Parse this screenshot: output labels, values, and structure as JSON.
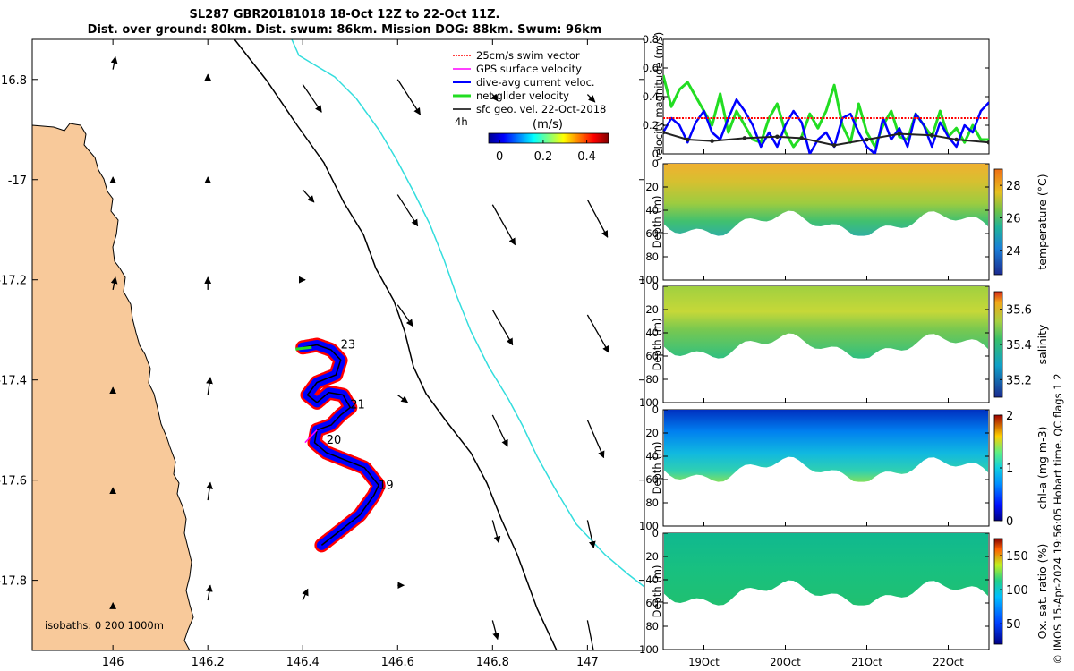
{
  "title": {
    "line1": "SL287 GBR20181018 18-Oct 12Z to 22-Oct 11Z.",
    "line2": "Dist. over ground: 80km. Dist. swum: 86km. Mission DOG: 88km. Swum: 96km"
  },
  "colors": {
    "land": "#f8c99a",
    "isobath_200": "#000000",
    "isobath_1000": "#33dddd",
    "track": "#000000",
    "dive_current": "#0000ff",
    "swim": "#ff0000",
    "gps": "#ff00ff",
    "net": "#22dd22"
  },
  "map": {
    "xticks": [
      "146",
      "146.2",
      "146.4",
      "146.6",
      "146.8",
      "147"
    ],
    "xtick_values": [
      146,
      146.2,
      146.4,
      146.6,
      146.8,
      147
    ],
    "yticks": [
      "-16.8",
      "-17",
      "-17.2",
      "-17.4",
      "-17.6",
      "-17.8"
    ],
    "ytick_values": [
      -16.8,
      -17,
      -17.2,
      -17.4,
      -17.6,
      -17.8
    ],
    "xlim": [
      145.83,
      147.12
    ],
    "ylim": [
      -17.94,
      -16.72
    ],
    "legend": [
      {
        "label": "25cm/s swim vector"
      },
      {
        "label": "GPS surface velocity"
      },
      {
        "label": "dive-avg current veloc."
      },
      {
        "label": "net glider velocity"
      },
      {
        "label": "sfc geo. vel. 22-Oct-2018"
      }
    ],
    "legend_period": "4h",
    "colorbar_units": "(m/s)",
    "colorbar_ticks": [
      "0",
      "0.2",
      "0.4"
    ],
    "colorbar_tick_values": [
      0,
      0.2,
      0.4
    ],
    "colorbar_range": [
      -0.05,
      0.5
    ],
    "isobaths_text": "isobaths: 0   200  1000m",
    "day_labels": [
      {
        "text": "23",
        "lon": 146.48,
        "lat": -17.33
      },
      {
        "text": "21",
        "lon": 146.5,
        "lat": -17.45
      },
      {
        "text": "20",
        "lon": 146.45,
        "lat": -17.52
      },
      {
        "text": "19",
        "lon": 146.56,
        "lat": -17.61
      }
    ],
    "glider_track": [
      [
        146.44,
        -17.73
      ],
      [
        146.48,
        -17.7
      ],
      [
        146.52,
        -17.67
      ],
      [
        146.55,
        -17.63
      ],
      [
        146.56,
        -17.61
      ],
      [
        146.53,
        -17.575
      ],
      [
        146.49,
        -17.56
      ],
      [
        146.45,
        -17.545
      ],
      [
        146.425,
        -17.525
      ],
      [
        146.43,
        -17.5
      ],
      [
        146.46,
        -17.49
      ],
      [
        146.48,
        -17.47
      ],
      [
        146.5,
        -17.455
      ],
      [
        146.485,
        -17.43
      ],
      [
        146.455,
        -17.425
      ],
      [
        146.43,
        -17.445
      ],
      [
        146.41,
        -17.43
      ],
      [
        146.43,
        -17.405
      ],
      [
        146.47,
        -17.39
      ],
      [
        146.48,
        -17.36
      ],
      [
        146.46,
        -17.34
      ],
      [
        146.43,
        -17.33
      ],
      [
        146.4,
        -17.335
      ]
    ],
    "current_vectors": [
      {
        "lon": 146.0,
        "lat": -16.78,
        "u": 0.02,
        "v": 0.1
      },
      {
        "lon": 146.2,
        "lat": -16.8,
        "u": 0.0,
        "v": 0.04
      },
      {
        "lon": 146.4,
        "lat": -16.81,
        "u": 0.15,
        "v": -0.22
      },
      {
        "lon": 146.6,
        "lat": -16.8,
        "u": 0.18,
        "v": -0.28
      },
      {
        "lon": 146.8,
        "lat": -16.83,
        "u": 0.04,
        "v": -0.05
      },
      {
        "lon": 147.0,
        "lat": -16.83,
        "u": 0.06,
        "v": -0.06
      },
      {
        "lon": 146.0,
        "lat": -17.0,
        "u": 0.0,
        "v": 0.02
      },
      {
        "lon": 146.2,
        "lat": -17.0,
        "u": 0.0,
        "v": 0.02
      },
      {
        "lon": 146.4,
        "lat": -17.02,
        "u": 0.09,
        "v": -0.1
      },
      {
        "lon": 146.6,
        "lat": -17.03,
        "u": 0.16,
        "v": -0.25
      },
      {
        "lon": 146.8,
        "lat": -17.05,
        "u": 0.18,
        "v": -0.32
      },
      {
        "lon": 147.0,
        "lat": -17.04,
        "u": 0.16,
        "v": -0.3
      },
      {
        "lon": 146.0,
        "lat": -17.22,
        "u": 0.02,
        "v": 0.1
      },
      {
        "lon": 146.2,
        "lat": -17.22,
        "u": 0.0,
        "v": 0.1
      },
      {
        "lon": 146.4,
        "lat": -17.2,
        "u": 0.02,
        "v": 0.0
      },
      {
        "lon": 146.6,
        "lat": -17.25,
        "u": 0.12,
        "v": -0.17
      },
      {
        "lon": 146.8,
        "lat": -17.26,
        "u": 0.16,
        "v": -0.28
      },
      {
        "lon": 147.0,
        "lat": -17.27,
        "u": 0.17,
        "v": -0.3
      },
      {
        "lon": 146.0,
        "lat": -17.42,
        "u": 0.0,
        "v": 0.02
      },
      {
        "lon": 146.2,
        "lat": -17.43,
        "u": 0.02,
        "v": 0.14
      },
      {
        "lon": 146.6,
        "lat": -17.43,
        "u": 0.08,
        "v": -0.06
      },
      {
        "lon": 146.8,
        "lat": -17.47,
        "u": 0.12,
        "v": -0.25
      },
      {
        "lon": 147.0,
        "lat": -17.48,
        "u": 0.13,
        "v": -0.3
      },
      {
        "lon": 146.0,
        "lat": -17.62,
        "u": 0.0,
        "v": 0.02
      },
      {
        "lon": 146.2,
        "lat": -17.64,
        "u": 0.02,
        "v": 0.14
      },
      {
        "lon": 146.8,
        "lat": -17.68,
        "u": 0.05,
        "v": -0.18
      },
      {
        "lon": 147.0,
        "lat": -17.68,
        "u": 0.05,
        "v": -0.22
      },
      {
        "lon": 146.0,
        "lat": -17.85,
        "u": 0.0,
        "v": 0.02
      },
      {
        "lon": 146.2,
        "lat": -17.84,
        "u": 0.02,
        "v": 0.12
      },
      {
        "lon": 146.4,
        "lat": -17.84,
        "u": 0.04,
        "v": 0.09
      },
      {
        "lon": 146.6,
        "lat": -17.81,
        "u": 0.05,
        "v": 0.0
      },
      {
        "lon": 146.8,
        "lat": -17.88,
        "u": 0.04,
        "v": -0.15
      },
      {
        "lon": 147.0,
        "lat": -17.88,
        "u": 0.06,
        "v": -0.3
      }
    ]
  },
  "chart_data": [
    {
      "type": "line",
      "ylabel": "velocity magnitude (m/s)",
      "ylim": [
        0,
        0.8
      ],
      "yticks": [
        "0",
        "0.2",
        "0.4",
        "0.6",
        "0.8"
      ],
      "ytick_values": [
        0,
        0.2,
        0.4,
        0.6,
        0.8
      ],
      "xlim": [
        18.5,
        22.5
      ],
      "series": [
        {
          "name": "25cm/s swim vector",
          "color": "#ff0000",
          "dashed": true,
          "x": [
            18.5,
            22.5
          ],
          "values": [
            0.25,
            0.25
          ]
        },
        {
          "name": "net glider velocity",
          "color": "#22dd22",
          "x": [
            18.5,
            18.6,
            18.7,
            18.8,
            18.9,
            19.0,
            19.1,
            19.2,
            19.3,
            19.4,
            19.5,
            19.6,
            19.7,
            19.8,
            19.9,
            20.0,
            20.1,
            20.2,
            20.3,
            20.4,
            20.5,
            20.6,
            20.7,
            20.8,
            20.9,
            21.0,
            21.1,
            21.2,
            21.3,
            21.4,
            21.5,
            21.6,
            21.7,
            21.8,
            21.9,
            22.0,
            22.1,
            22.2,
            22.3,
            22.4,
            22.5
          ],
          "values": [
            0.55,
            0.33,
            0.45,
            0.5,
            0.4,
            0.3,
            0.2,
            0.42,
            0.15,
            0.3,
            0.2,
            0.1,
            0.08,
            0.25,
            0.35,
            0.15,
            0.05,
            0.12,
            0.28,
            0.18,
            0.3,
            0.48,
            0.2,
            0.08,
            0.35,
            0.15,
            0.05,
            0.2,
            0.3,
            0.12,
            0.1,
            0.28,
            0.2,
            0.12,
            0.3,
            0.12,
            0.18,
            0.08,
            0.2,
            0.1,
            0.1
          ]
        },
        {
          "name": "dive-avg current veloc.",
          "color": "#0000ff",
          "x": [
            18.5,
            18.6,
            18.7,
            18.8,
            18.9,
            19.0,
            19.1,
            19.2,
            19.3,
            19.4,
            19.5,
            19.6,
            19.7,
            19.8,
            19.9,
            20.0,
            20.1,
            20.2,
            20.3,
            20.4,
            20.5,
            20.6,
            20.7,
            20.8,
            20.9,
            21.0,
            21.1,
            21.2,
            21.3,
            21.4,
            21.5,
            21.6,
            21.7,
            21.8,
            21.9,
            22.0,
            22.1,
            22.2,
            22.3,
            22.4,
            22.5
          ],
          "values": [
            0.15,
            0.25,
            0.2,
            0.08,
            0.22,
            0.3,
            0.15,
            0.1,
            0.25,
            0.38,
            0.3,
            0.2,
            0.05,
            0.15,
            0.05,
            0.2,
            0.3,
            0.22,
            0.0,
            0.1,
            0.15,
            0.05,
            0.25,
            0.28,
            0.15,
            0.05,
            0.0,
            0.25,
            0.1,
            0.18,
            0.05,
            0.28,
            0.2,
            0.05,
            0.22,
            0.12,
            0.05,
            0.2,
            0.15,
            0.3,
            0.36
          ]
        },
        {
          "name": "sfc geo. vel.",
          "color": "#222222",
          "x": [
            18.5,
            18.8,
            19.1,
            19.5,
            19.9,
            20.2,
            20.6,
            21.0,
            21.4,
            21.8,
            22.1,
            22.5
          ],
          "values": [
            0.15,
            0.1,
            0.09,
            0.11,
            0.12,
            0.11,
            0.06,
            0.1,
            0.14,
            0.13,
            0.1,
            0.08
          ]
        }
      ]
    },
    {
      "type": "heatmap",
      "ylabel": "Depth (m)",
      "colorbar_label": "temperature (°C)",
      "colorbar_ticks": [
        "24",
        "26",
        "28"
      ],
      "colorbar_tick_values": [
        24,
        26,
        28
      ],
      "crange": [
        22.5,
        29
      ],
      "mean_value": 26.5
    },
    {
      "type": "heatmap",
      "ylabel": "Depth (m)",
      "colorbar_label": "salinity",
      "colorbar_ticks": [
        "35.2",
        "35.4",
        "35.6"
      ],
      "colorbar_tick_values": [
        35.2,
        35.4,
        35.6
      ],
      "crange": [
        35.1,
        35.7
      ],
      "mean_value": 35.5
    },
    {
      "type": "heatmap",
      "ylabel": "Depth (m)",
      "colorbar_label": "chl-a (mg m-3)",
      "colorbar_ticks": [
        "0",
        "1",
        "2"
      ],
      "colorbar_tick_values": [
        0,
        1,
        2
      ],
      "crange": [
        0,
        2
      ],
      "mean_value": 0.5
    },
    {
      "type": "heatmap",
      "ylabel": "Depth (m)",
      "colorbar_label": "Ox. sat. ratio (%)",
      "colorbar_ticks": [
        "50",
        "100",
        "150"
      ],
      "colorbar_tick_values": [
        50,
        100,
        150
      ],
      "crange": [
        20,
        175
      ],
      "mean_value": 105
    }
  ],
  "section_axes": {
    "depth_ticks": [
      "0",
      "20",
      "40",
      "60",
      "80",
      "100"
    ],
    "depth_tick_values": [
      0,
      20,
      40,
      60,
      80,
      100
    ],
    "time_ticks": [
      "19Oct",
      "20Oct",
      "21Oct",
      "22Oct"
    ],
    "time_tick_values": [
      19,
      20,
      21,
      22
    ],
    "xlim": [
      18.5,
      22.5
    ]
  },
  "credit": "© IMOS 15-Apr-2024 19:56:05 Hobart time. QC flags 1  2"
}
